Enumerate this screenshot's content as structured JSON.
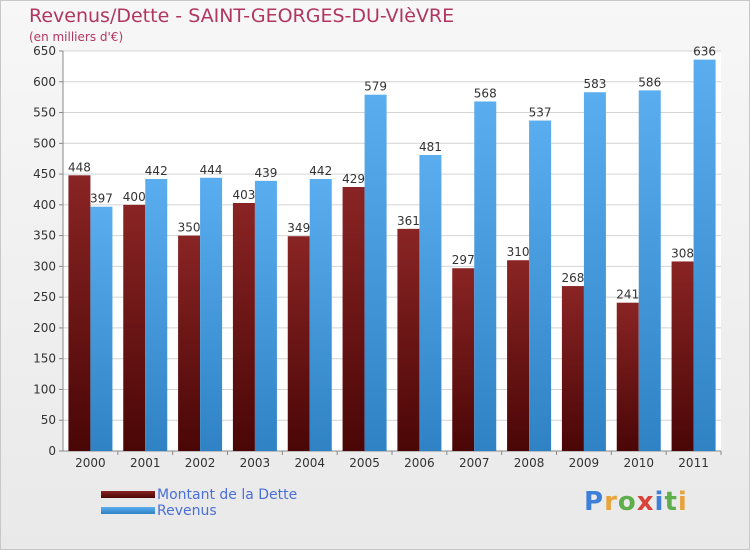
{
  "chart_data": {
    "type": "bar",
    "title": "Revenus/Dette - SAINT-GEORGES-DU-VIèVRE",
    "subtitle": "(en milliers d'€)",
    "categories": [
      "2000",
      "2001",
      "2002",
      "2003",
      "2004",
      "2005",
      "2006",
      "2007",
      "2008",
      "2009",
      "2010",
      "2011"
    ],
    "series": [
      {
        "name": "Montant de la Dette",
        "color": "#7a1818",
        "values": [
          448,
          400,
          350,
          403,
          349,
          429,
          361,
          297,
          310,
          268,
          241,
          308
        ]
      },
      {
        "name": "Revenus",
        "color": "#4a9ee0",
        "values": [
          397,
          442,
          444,
          439,
          442,
          579,
          481,
          568,
          537,
          583,
          586,
          636
        ]
      }
    ],
    "ylim": [
      0,
      650
    ],
    "yticks": [
      0,
      50,
      100,
      150,
      200,
      250,
      300,
      350,
      400,
      450,
      500,
      550,
      600,
      650
    ],
    "grid": true,
    "legend_position": "bottom-left"
  },
  "logo_letters": [
    {
      "char": "P",
      "color": "#3d7fd9"
    },
    {
      "char": "r",
      "color": "#e8a33a"
    },
    {
      "char": "o",
      "color": "#5fae4c"
    },
    {
      "char": "x",
      "color": "#d9443a"
    },
    {
      "char": "i",
      "color": "#3d7fd9"
    },
    {
      "char": "t",
      "color": "#5fae4c"
    },
    {
      "char": "i",
      "color": "#e8a33a"
    }
  ]
}
